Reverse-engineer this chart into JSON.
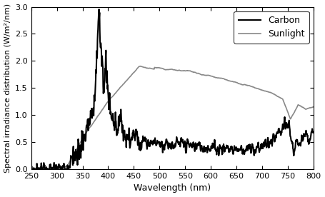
{
  "title": "",
  "xlabel": "Wavelength (nm)",
  "ylabel": "Spectral irradiance distribution (W/m²/nm)",
  "xlim": [
    250,
    800
  ],
  "ylim": [
    0,
    3
  ],
  "yticks": [
    0,
    0.5,
    1,
    1.5,
    2,
    2.5,
    3
  ],
  "xticks": [
    250,
    300,
    350,
    400,
    450,
    500,
    550,
    600,
    650,
    700,
    750,
    800
  ],
  "carbon_color": "#000000",
  "sunlight_color": "#888888",
  "carbon_linewidth": 1.5,
  "sunlight_linewidth": 1.2,
  "legend_loc": "upper right",
  "figsize": [
    4.55,
    2.76
  ],
  "dpi": 100
}
